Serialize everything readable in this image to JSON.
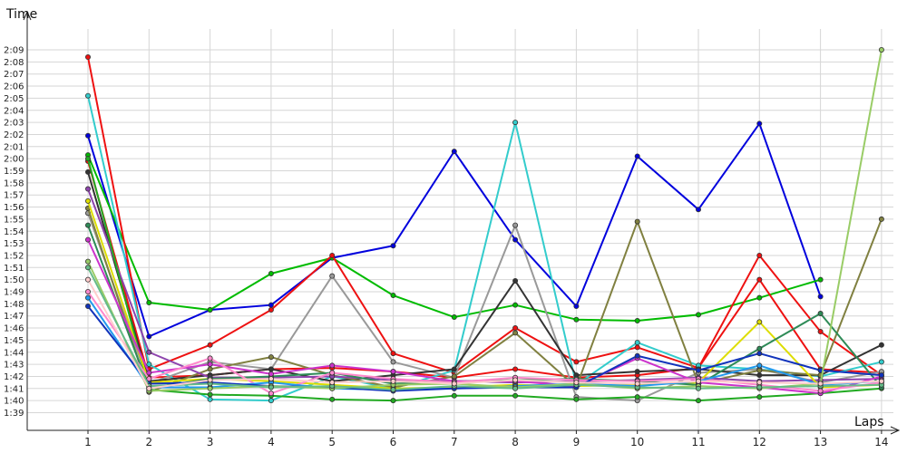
{
  "chart_data": {
    "type": "line",
    "xlabel": "Laps",
    "ylabel": "Time",
    "x": [
      1,
      2,
      3,
      4,
      5,
      6,
      7,
      8,
      9,
      10,
      11,
      12,
      13,
      14
    ],
    "x_tick_labels": [
      "1",
      "2",
      "3",
      "4",
      "5",
      "6",
      "7",
      "8",
      "9",
      "10",
      "11",
      "12",
      "13",
      "14"
    ],
    "y_unit": "seconds",
    "ylim": [
      99,
      129
    ],
    "y_ticks": [
      99,
      100,
      101,
      102,
      103,
      104,
      105,
      106,
      107,
      108,
      109,
      110,
      111,
      112,
      113,
      114,
      115,
      116,
      117,
      118,
      119,
      120,
      121,
      122,
      123,
      124,
      125,
      126,
      127,
      128,
      129
    ],
    "y_tick_labels": [
      "1:39",
      "1:40",
      "1:41",
      "1:42",
      "1:43",
      "1:44",
      "1:45",
      "1:46",
      "1:47",
      "1:48",
      "1:49",
      "1:50",
      "1:51",
      "1:52",
      "1:53",
      "1:54",
      "1:55",
      "1:56",
      "1:57",
      "1:58",
      "1:59",
      "2:00",
      "2:01",
      "2:02",
      "2:03",
      "2:04",
      "2:05",
      "2:06",
      "2:07",
      "2:08",
      "2:09"
    ],
    "grid": true,
    "legend": "none",
    "series": [
      {
        "color": "#0000dd",
        "values": [
          121.9,
          105.3,
          107.5,
          107.9,
          111.8,
          112.8,
          120.6,
          113.3,
          107.8,
          120.2,
          115.8,
          122.9,
          108.6,
          null
        ]
      },
      {
        "color": "#00bb00",
        "values": [
          120.3,
          108.1,
          107.5,
          110.5,
          111.8,
          108.7,
          106.9,
          107.9,
          106.7,
          106.6,
          107.1,
          108.5,
          110.0,
          null
        ]
      },
      {
        "color": "#ee1111",
        "values": [
          128.4,
          102.6,
          104.6,
          107.5,
          112.0,
          103.9,
          102.3,
          106.0,
          103.2,
          104.4,
          102.7,
          112.0,
          105.7,
          102.1
        ]
      },
      {
        "color": "#ee1111",
        "values": [
          119.8,
          101.9,
          102.1,
          102.6,
          102.7,
          102.4,
          101.9,
          102.6,
          101.9,
          102.1,
          102.7,
          110.0,
          102.6,
          102.3
        ]
      },
      {
        "color": "#33cccc",
        "values": [
          125.2,
          103.0,
          100.1,
          100.0,
          102.0,
          101.0,
          102.5,
          123.0,
          101.3,
          104.8,
          102.9,
          102.6,
          102.0,
          103.2
        ]
      },
      {
        "color": "#999999",
        "values": [
          115.5,
          101.4,
          103.2,
          102.6,
          110.3,
          103.2,
          101.9,
          114.5,
          100.3,
          100.0,
          102.3,
          102.6,
          101.5,
          102.4
        ]
      },
      {
        "color": "#333333",
        "values": [
          118.9,
          101.6,
          102.1,
          102.6,
          101.6,
          102.1,
          102.6,
          109.9,
          102.1,
          102.4,
          102.6,
          102.1,
          102.1,
          104.6
        ]
      },
      {
        "color": "#808040",
        "values": [
          115.9,
          100.7,
          102.6,
          103.6,
          102.1,
          101.1,
          102.0,
          105.6,
          101.1,
          114.8,
          101.4,
          102.5,
          102.1,
          115.0
        ]
      },
      {
        "color": "#8e44ad",
        "values": [
          117.5,
          104.0,
          101.9,
          101.9,
          102.0,
          101.7,
          101.6,
          101.5,
          101.6,
          101.7,
          101.9,
          101.6,
          101.7,
          101.8
        ]
      },
      {
        "color": "#22aa22",
        "values": [
          120.0,
          100.9,
          100.5,
          100.4,
          100.1,
          100.0,
          100.4,
          100.4,
          100.1,
          100.3,
          100.0,
          100.3,
          100.6,
          101.0
        ]
      },
      {
        "color": "#dddd00",
        "values": [
          116.5,
          101.5,
          101.8,
          101.6,
          101.3,
          101.0,
          101.1,
          101.3,
          101.2,
          101.3,
          101.5,
          106.5,
          101.1,
          101.3
        ]
      },
      {
        "color": "#2e8b57",
        "values": [
          114.5,
          101.0,
          101.8,
          102.0,
          102.3,
          101.4,
          101.6,
          101.7,
          101.8,
          101.6,
          101.3,
          104.3,
          107.2,
          101.1
        ]
      },
      {
        "color": "#cc33cc",
        "values": [
          113.3,
          102.3,
          103.0,
          102.2,
          102.9,
          102.4,
          101.6,
          101.6,
          101.2,
          103.5,
          101.5,
          101.1,
          100.6,
          102.0
        ]
      },
      {
        "color": "#ff88cc",
        "values": [
          109.0,
          101.8,
          103.5,
          100.6,
          102.3,
          101.8,
          101.5,
          101.9,
          101.7,
          101.6,
          101.8,
          101.3,
          100.8,
          101.5
        ]
      },
      {
        "color": "#2299ee",
        "values": [
          108.5,
          101.1,
          101.1,
          101.5,
          101.0,
          100.9,
          101.0,
          101.2,
          101.4,
          101.2,
          101.6,
          102.9,
          101.3,
          101.6
        ]
      },
      {
        "color": "#1133bb",
        "values": [
          107.8,
          101.4,
          101.5,
          101.2,
          101.1,
          100.8,
          101.0,
          101.1,
          101.1,
          103.7,
          102.5,
          103.9,
          102.5,
          102.1
        ]
      },
      {
        "color": "#99cc66",
        "values": [
          111.5,
          100.8,
          101.0,
          101.2,
          101.0,
          101.3,
          101.4,
          101.1,
          101.4,
          101.0,
          101.2,
          101.0,
          101.4,
          129.0
        ]
      },
      {
        "color": "#66bb88",
        "values": [
          111.0,
          101.2,
          101.4,
          101.1,
          101.2,
          100.9,
          101.2,
          101.0,
          101.3,
          101.1,
          101.0,
          101.1,
          101.2,
          101.3
        ]
      },
      {
        "color": "#ffcccc",
        "values": [
          110.0,
          101.0,
          101.7,
          101.8,
          101.5,
          101.6,
          101.4,
          101.7,
          101.5,
          101.4,
          101.6,
          101.5,
          101.4,
          101.6
        ]
      }
    ]
  }
}
